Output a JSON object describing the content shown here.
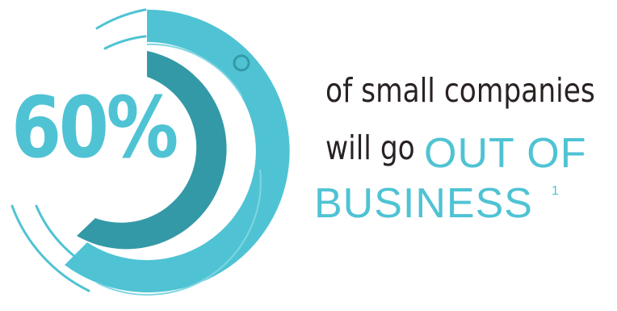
{
  "stat": {
    "percent_label": "60%",
    "progress_fraction": 0.6
  },
  "headline": {
    "line1": "of small companies",
    "line2_lead": "will go",
    "accent_line1": "OUT OF",
    "accent_line2": "BUSINESS",
    "footnote": "1"
  },
  "colors": {
    "accent": "#4fc3d4",
    "accent_dark": "#3499a6",
    "text_dark": "#2a2222",
    "background": "#ffffff"
  }
}
